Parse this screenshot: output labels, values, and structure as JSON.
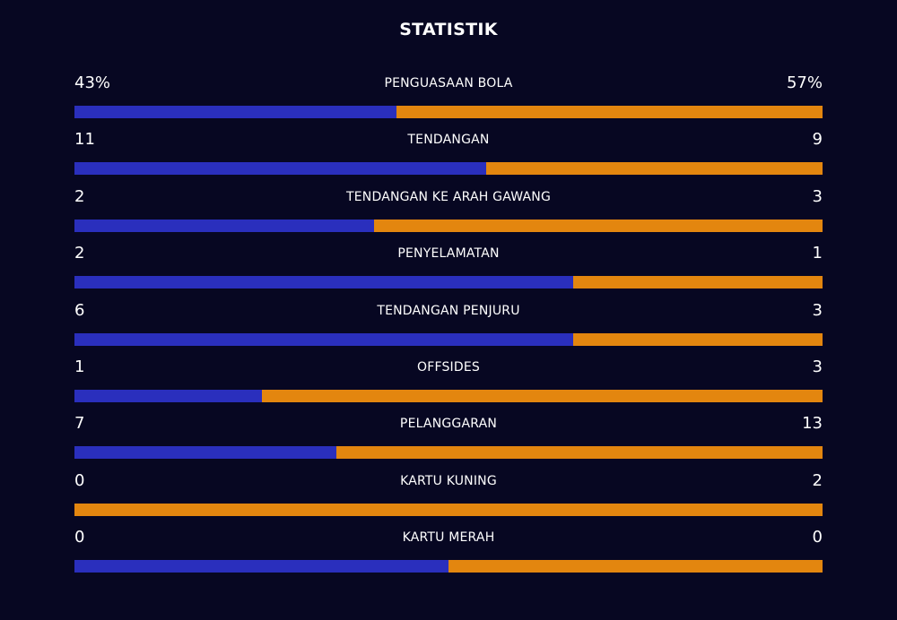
{
  "title": "STATISTIK",
  "colors": {
    "background": "#070722",
    "home_bar": "#2a2fbd",
    "away_bar": "#e3860f",
    "text": "#ffffff"
  },
  "stats": [
    {
      "label": "PENGUASAAN BOLA",
      "home": "43%",
      "away": "57%",
      "home_share": 0.43
    },
    {
      "label": "TENDANGAN",
      "home": "11",
      "away": "9",
      "home_share": 0.55
    },
    {
      "label": "TENDANGAN KE ARAH GAWANG",
      "home": "2",
      "away": "3",
      "home_share": 0.4
    },
    {
      "label": "PENYELAMATAN",
      "home": "2",
      "away": "1",
      "home_share": 0.6667
    },
    {
      "label": "TENDANGAN PENJURU",
      "home": "6",
      "away": "3",
      "home_share": 0.6667
    },
    {
      "label": "OFFSIDES",
      "home": "1",
      "away": "3",
      "home_share": 0.25
    },
    {
      "label": "PELANGGARAN",
      "home": "7",
      "away": "13",
      "home_share": 0.35
    },
    {
      "label": "KARTU KUNING",
      "home": "0",
      "away": "2",
      "home_share": 0
    },
    {
      "label": "KARTU MERAH",
      "home": "0",
      "away": "0",
      "home_share": 0.5
    }
  ]
}
